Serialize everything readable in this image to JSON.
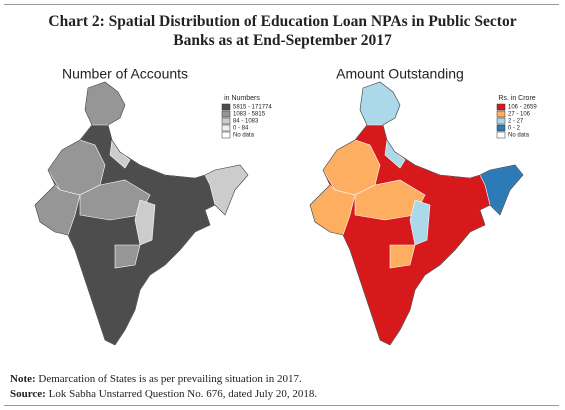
{
  "title": "Chart 2: Spatial Distribution of Education Loan NPAs in Public Sector Banks as at End-September 2017",
  "maps": [
    {
      "title": "Number of Accounts",
      "legend_title": "in Numbers",
      "legend": [
        {
          "label": "5815 - 171774",
          "color": "#4d4d4d"
        },
        {
          "label": "1083 - 5815",
          "color": "#969696"
        },
        {
          "label": "84 - 1083",
          "color": "#cccccc"
        },
        {
          "label": "0 - 84",
          "color": "#efefef"
        },
        {
          "label": "No data",
          "color": "#ffffff"
        }
      ]
    },
    {
      "title": "Amount Outstanding",
      "legend_title": "Rs. in Crore",
      "legend": [
        {
          "label": "106 - 2659",
          "color": "#d7191c"
        },
        {
          "label": "27 - 106",
          "color": "#fdae61"
        },
        {
          "label": "2 - 27",
          "color": "#abd9e9"
        },
        {
          "label": "0 - 2",
          "color": "#2c7bb6"
        },
        {
          "label": "No data",
          "color": "#ffffff"
        }
      ]
    }
  ],
  "note": {
    "label": "Note:",
    "text": "Demarcation of States is as per prevailing situation in 2017."
  },
  "source": {
    "label": "Source:",
    "text": "Lok Sabha Unstarred Question No. 676, dated July 20, 2018."
  }
}
